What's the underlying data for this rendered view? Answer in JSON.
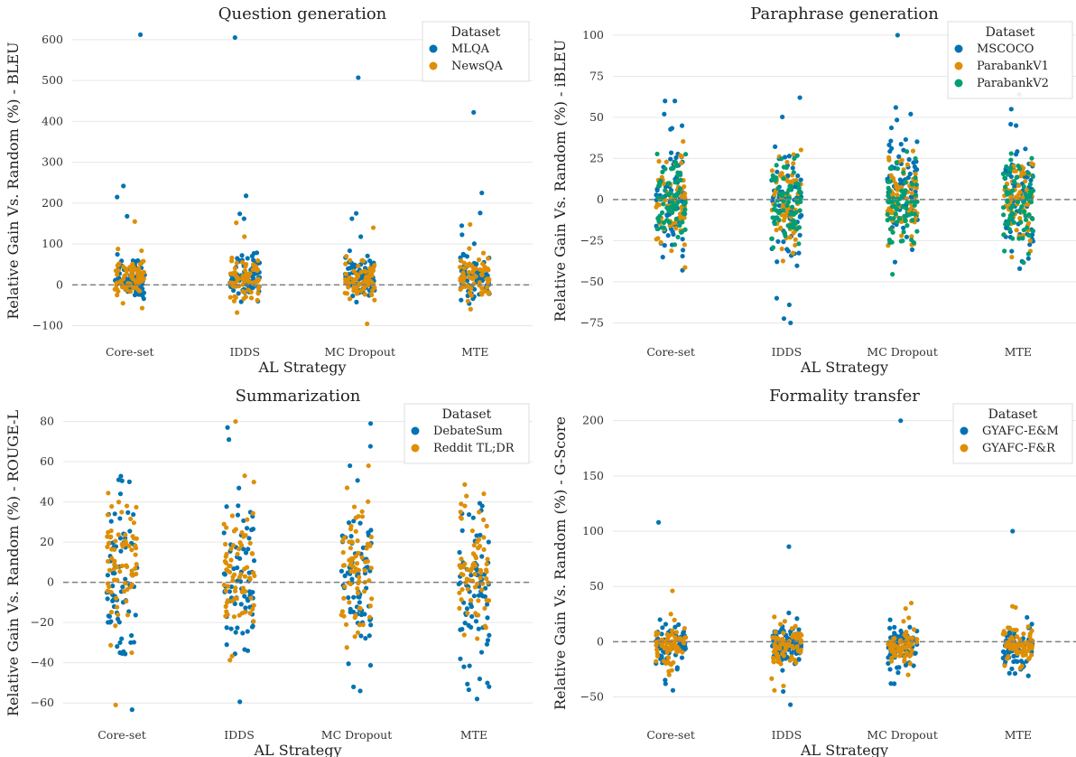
{
  "chart_data": [
    {
      "type": "scatter",
      "title": "Question generation",
      "xlabel": "AL Strategy",
      "ylabel": "Relative Gain Vs. Random (%) - BLEU",
      "categories": [
        "Core-set",
        "IDDS",
        "MC Dropout",
        "MTE"
      ],
      "ylim": [
        -125,
        635
      ],
      "yticks": [
        -100,
        0,
        100,
        200,
        300,
        400,
        500,
        600
      ],
      "grid": true,
      "reference_line": 0,
      "legend": {
        "title": "Dataset",
        "placement": "top-right"
      },
      "series": [
        {
          "name": "MLQA",
          "color": "#0173b2",
          "outliers": [
            [
              612,
              242,
              215,
              168
            ],
            [
              605,
              218,
              174,
              162
            ],
            [
              507,
              175,
              162,
              118
            ],
            [
              422,
              225,
              176,
              145
            ]
          ],
          "center": 20,
          "spread": 60
        },
        {
          "name": "NewsQA",
          "color": "#de8f05",
          "outliers": [
            [
              155,
              88
            ],
            [
              152,
              118
            ],
            [
              140,
              70,
              -95
            ],
            [
              148,
              65
            ]
          ],
          "center": 15,
          "spread": 55
        }
      ]
    },
    {
      "type": "scatter",
      "title": "Paraphrase generation",
      "xlabel": "AL Strategy",
      "ylabel": "Relative Gain Vs. Random (%) - iBLEU",
      "categories": [
        "Core-set",
        "IDDS",
        "MC Dropout",
        "MTE"
      ],
      "ylim": [
        -83,
        106
      ],
      "yticks": [
        -75,
        -50,
        -25,
        0,
        25,
        50,
        75,
        100
      ],
      "grid": true,
      "reference_line": 0,
      "legend": {
        "title": "Dataset",
        "placement": "top-right"
      },
      "series": [
        {
          "name": "MSCOCO",
          "color": "#0173b2",
          "outliers": [
            [
              60,
              60,
              52,
              -35
            ],
            [
              62,
              -64,
              -75,
              -60
            ],
            [
              100,
              56,
              52,
              -38
            ],
            [
              64,
              55,
              45,
              -42
            ]
          ],
          "center": 0,
          "spread": 40
        },
        {
          "name": "ParabankV1",
          "color": "#de8f05",
          "outliers": [
            [
              22,
              -18
            ],
            [
              22,
              -30
            ],
            [
              24,
              -22
            ],
            [
              22,
              -25
            ]
          ],
          "center": -2,
          "spread": 30
        },
        {
          "name": "ParabankV2",
          "color": "#029e73",
          "outliers": [
            [
              15,
              -20
            ],
            [
              25,
              -22
            ],
            [
              25,
              -20
            ],
            [
              28,
              -18
            ]
          ],
          "center": -3,
          "spread": 30
        }
      ]
    },
    {
      "type": "scatter",
      "title": "Summarization",
      "xlabel": "AL Strategy",
      "ylabel": "Relative Gain Vs. Random (%) - ROUGE-L",
      "categories": [
        "Core-set",
        "IDDS",
        "MC Dropout",
        "MTE"
      ],
      "ylim": [
        -68,
        87
      ],
      "yticks": [
        -60,
        -40,
        -20,
        0,
        20,
        40,
        60,
        80
      ],
      "grid": true,
      "reference_line": 0,
      "legend": {
        "title": "Dataset",
        "placement": "top-right"
      },
      "series": [
        {
          "name": "DebateSum",
          "color": "#0173b2",
          "outliers": [
            [
              51,
              50,
              44,
              -30
            ],
            [
              77,
              71,
              -34,
              -31
            ],
            [
              79,
              58,
              -54,
              -52
            ],
            [
              38,
              -58,
              -48,
              -42
            ]
          ],
          "center": 0,
          "spread": 45
        },
        {
          "name": "Reddit TL;DR",
          "color": "#de8f05",
          "outliers": [
            [
              38,
              -61,
              -35
            ],
            [
              80,
              53,
              -12
            ],
            [
              58,
              47,
              -25
            ],
            [
              39,
              38,
              -28
            ]
          ],
          "center": 5,
          "spread": 40
        }
      ]
    },
    {
      "type": "scatter",
      "title": "Formality transfer",
      "xlabel": "AL Strategy",
      "ylabel": "Relative Gain Vs. Random (%) - G-Score",
      "categories": [
        "Core-set",
        "IDDS",
        "MC Dropout",
        "MTE"
      ],
      "ylim": [
        -70,
        212
      ],
      "yticks": [
        -50,
        0,
        50,
        100,
        150,
        200
      ],
      "grid": true,
      "reference_line": 0,
      "legend": {
        "title": "Dataset",
        "placement": "top-right"
      },
      "series": [
        {
          "name": "GYAFC-E&M",
          "color": "#0173b2",
          "outliers": [
            [
              108,
              -44,
              -38
            ],
            [
              86,
              -57,
              -45
            ],
            [
              200,
              -38,
              -28
            ],
            [
              100,
              22,
              -25
            ]
          ],
          "center": -5,
          "spread": 22
        },
        {
          "name": "GYAFC-F&R",
          "color": "#de8f05",
          "outliers": [
            [
              46,
              25,
              -30
            ],
            [
              14,
              -44,
              -40
            ],
            [
              35,
              30,
              -30
            ],
            [
              32,
              31,
              -22
            ]
          ],
          "center": -3,
          "spread": 20
        }
      ]
    }
  ]
}
